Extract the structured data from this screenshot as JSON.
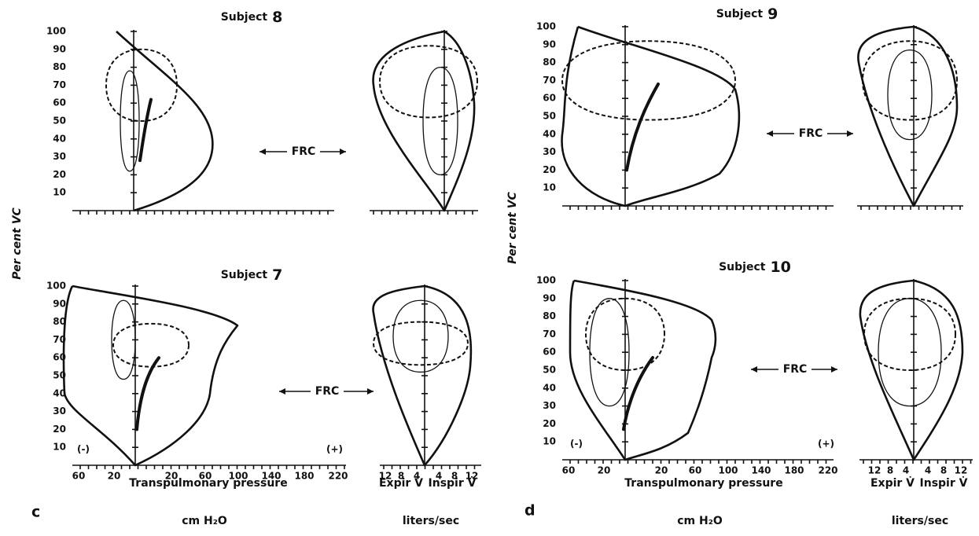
{
  "figure": {
    "y_axis_title": "Per cent VC",
    "y_tick_labels": [
      "10",
      "20",
      "30",
      "40",
      "50",
      "60",
      "70",
      "80",
      "90",
      "100"
    ],
    "pressure_tick_labels": [
      "60",
      "20",
      "20",
      "60",
      "100",
      "140",
      "180",
      "220"
    ],
    "flow_tick_labels": [
      "12",
      "8",
      "4",
      "4",
      "8",
      "12"
    ],
    "sign_labels": [
      "(-)",
      "(+)"
    ],
    "frc_label": "FRC",
    "pressure_axis_title": [
      "Transpulmonary pressure",
      "cm H₂O"
    ],
    "flow_axis_titles": [
      "Expir V̇",
      "Inspir V̇",
      "liters/sec"
    ],
    "panels": [
      {
        "letter": "c",
        "subjects": [
          {
            "prefix": "Subject",
            "number": "8"
          },
          {
            "prefix": "Subject",
            "number": "7"
          }
        ]
      },
      {
        "letter": "d",
        "subjects": [
          {
            "prefix": "Subject",
            "number": "9"
          },
          {
            "prefix": "Subject",
            "number": "10"
          }
        ]
      }
    ]
  }
}
